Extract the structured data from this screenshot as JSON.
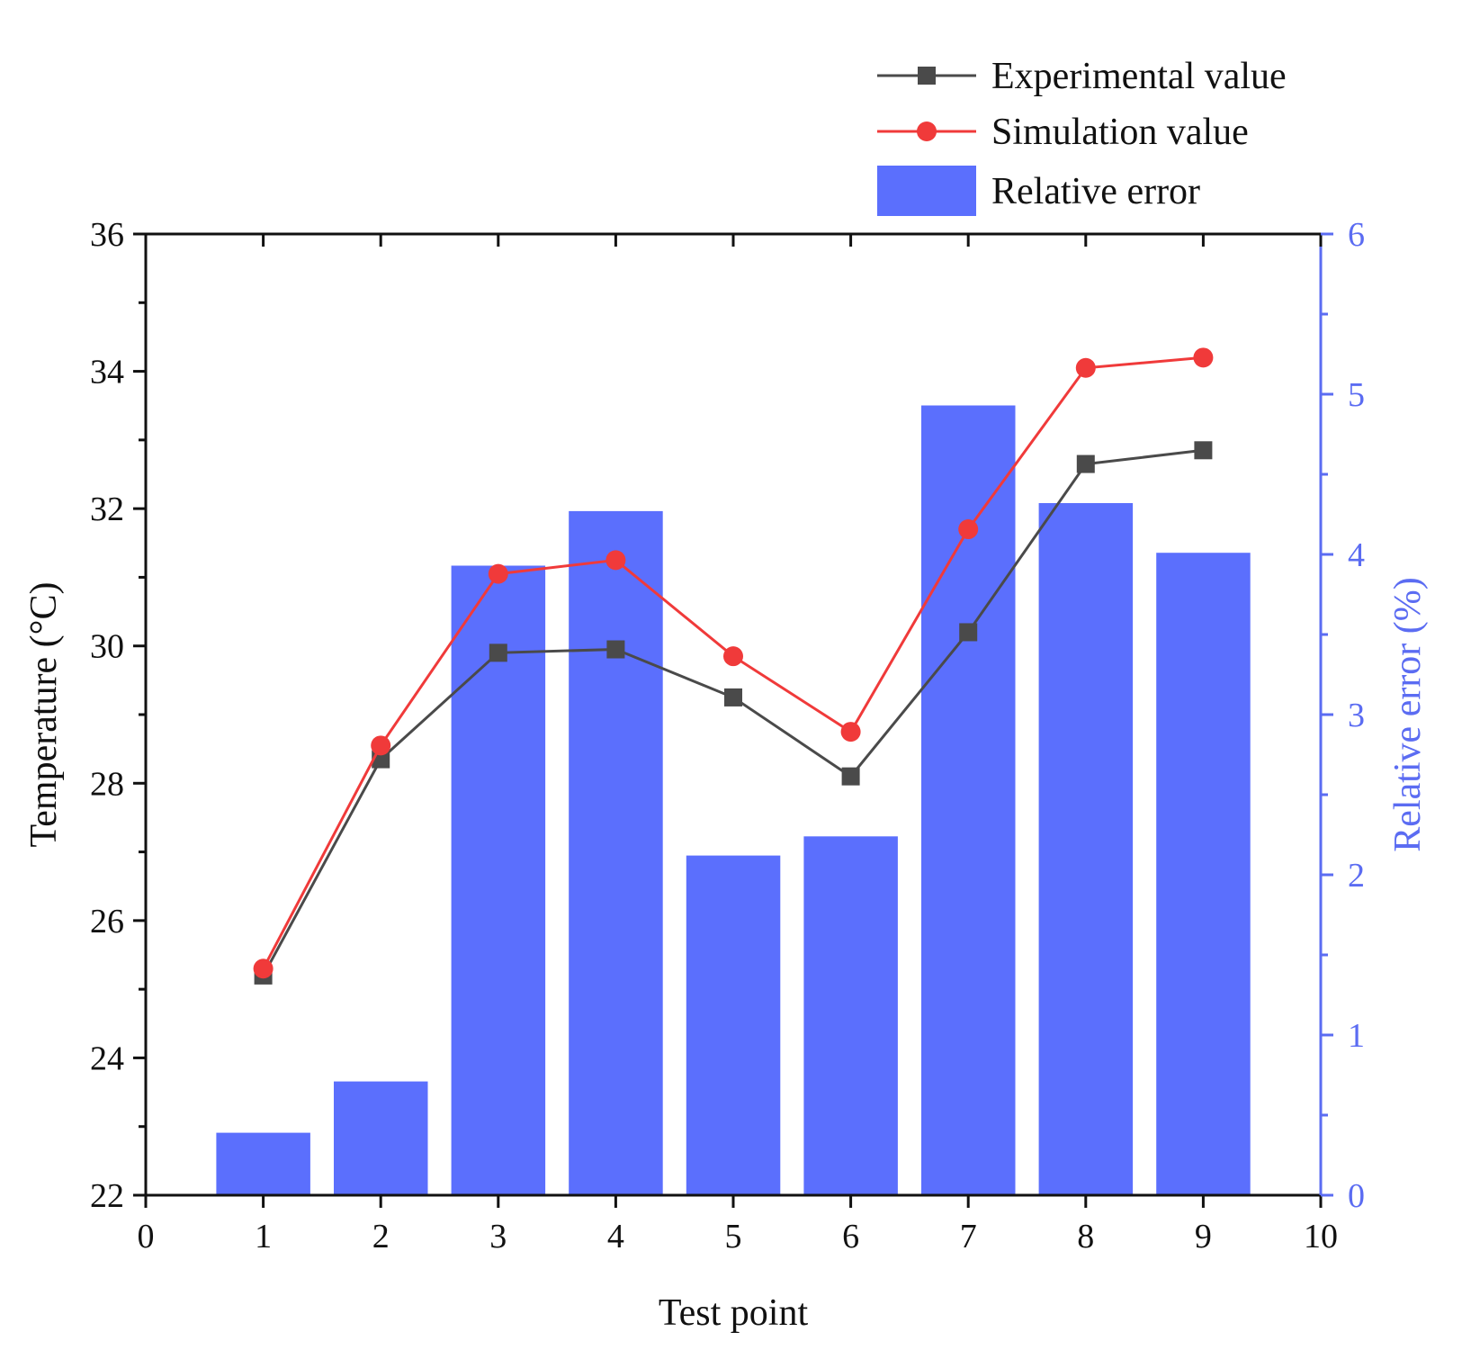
{
  "chart_data": {
    "type": "bar+line",
    "title": "",
    "xlabel": "Test point",
    "ylabel": "Temperature (°C)",
    "y2label": "Relative error (%)",
    "xlim": [
      0,
      10
    ],
    "ylim": [
      22,
      36
    ],
    "y2lim": [
      0,
      6
    ],
    "xticks": [
      "0",
      "1",
      "2",
      "3",
      "4",
      "5",
      "6",
      "7",
      "8",
      "9",
      "10"
    ],
    "yticks": [
      "22",
      "24",
      "26",
      "28",
      "30",
      "32",
      "34",
      "36"
    ],
    "y2ticks": [
      "0",
      "1",
      "2",
      "3",
      "4",
      "5",
      "6"
    ],
    "x": [
      1,
      2,
      3,
      4,
      5,
      6,
      7,
      8,
      9
    ],
    "series": [
      {
        "name": "Experimental value",
        "kind": "line",
        "marker": "square",
        "color": "#4a4a4a",
        "axis": "left",
        "values": [
          25.2,
          28.35,
          29.9,
          29.95,
          29.25,
          28.1,
          30.2,
          32.65,
          32.85
        ]
      },
      {
        "name": "Simulation value",
        "kind": "line",
        "marker": "circle",
        "color": "#f03a3a",
        "axis": "left",
        "values": [
          25.3,
          28.55,
          31.05,
          31.25,
          29.85,
          28.75,
          31.7,
          34.05,
          34.2
        ]
      },
      {
        "name": "Relative error",
        "kind": "bar",
        "color": "#5b6ffd",
        "axis": "right",
        "values": [
          0.39,
          0.71,
          3.93,
          4.27,
          2.12,
          2.24,
          4.93,
          4.32,
          4.01
        ]
      }
    ],
    "legend": {
      "position": "top-right",
      "entries": [
        "Experimental value",
        "Simulation value",
        "Relative error"
      ]
    },
    "colors": {
      "axis": "#111111",
      "right_axis": "#5b6cf2"
    }
  }
}
